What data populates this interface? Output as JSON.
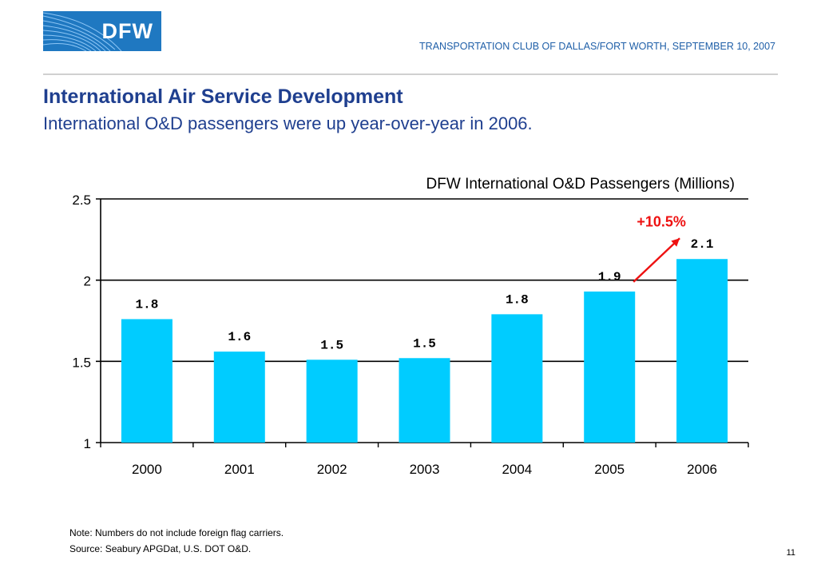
{
  "logo": {
    "text": "DFW"
  },
  "event": "TRANSPORTATION CLUB OF DALLAS/FORT WORTH, SEPTEMBER 10, 2007",
  "title": "International Air Service Development",
  "subtitle": "International O&D passengers were up year-over-year in 2006.",
  "chart_data": {
    "type": "bar",
    "title": "DFW International O&D Passengers (Millions)",
    "xlabel": "",
    "ylabel": "",
    "categories": [
      "2000",
      "2001",
      "2002",
      "2003",
      "2004",
      "2005",
      "2006"
    ],
    "values": [
      1.76,
      1.56,
      1.51,
      1.52,
      1.79,
      1.93,
      2.13
    ],
    "data_labels": [
      "1.8",
      "1.6",
      "1.5",
      "1.5",
      "1.8",
      "1.9",
      "2.1"
    ],
    "ylim": [
      1,
      2.5
    ],
    "yticks": [
      "1",
      "1.5",
      "2",
      "2.5"
    ],
    "grid": true,
    "bar_color": "#00ccff",
    "annotation": {
      "text": "+10.5%",
      "color": "#ee1111",
      "from_category": "2005",
      "to_category": "2006"
    }
  },
  "footer": {
    "note": "Note: Numbers do not include foreign flag carriers.",
    "source": "Source: Seabury APGDat, U.S. DOT O&D.",
    "page": "11"
  }
}
